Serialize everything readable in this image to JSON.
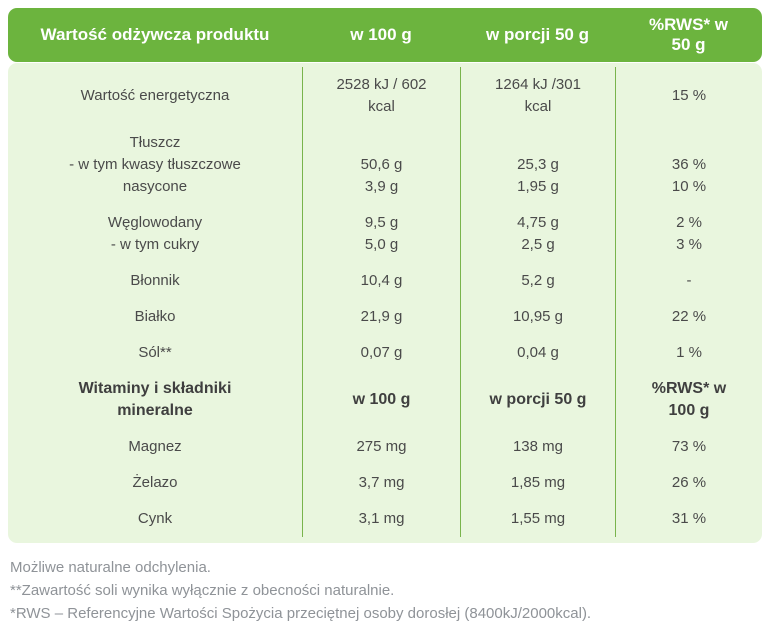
{
  "colors": {
    "header_green": "#6cb43e",
    "body_green": "#e9f6de",
    "divider_green": "#79b44c",
    "text_dark": "#4a4a4a",
    "footnote_gray": "#8f9398"
  },
  "table": {
    "header": {
      "columns": [
        {
          "lines": [
            "Wartość odżywcza produktu"
          ]
        },
        {
          "lines": [
            "w 100 g"
          ]
        },
        {
          "lines": [
            "w porcji 50 g"
          ]
        },
        {
          "lines": [
            "%RWS* w",
            "50 g"
          ]
        }
      ]
    },
    "rows": [
      {
        "name": "row-energy",
        "bold": false,
        "cells": [
          [
            "Wartość energetyczna"
          ],
          [
            "2528 kJ / 602",
            "kcal"
          ],
          [
            "1264 kJ /301",
            "kcal"
          ],
          [
            "15 %"
          ]
        ]
      },
      {
        "name": "row-fat",
        "bold": false,
        "cells": [
          [
            "Tłuszcz",
            "- w tym kwasy tłuszczowe",
            "nasycone"
          ],
          [
            "",
            "50,6 g",
            "3,9 g"
          ],
          [
            "",
            "25,3 g",
            "1,95 g"
          ],
          [
            "",
            "36 %",
            "10 %"
          ]
        ]
      },
      {
        "name": "row-carbohydrates",
        "bold": false,
        "cells": [
          [
            "Węglowodany",
            "- w tym cukry"
          ],
          [
            "9,5 g",
            "5,0 g"
          ],
          [
            "4,75 g",
            "2,5 g"
          ],
          [
            "2 %",
            "3 %"
          ]
        ]
      },
      {
        "name": "row-fiber",
        "bold": false,
        "cells": [
          [
            "Błonnik"
          ],
          [
            "10,4 g"
          ],
          [
            "5,2 g"
          ],
          [
            "-"
          ]
        ]
      },
      {
        "name": "row-protein",
        "bold": false,
        "cells": [
          [
            "Białko"
          ],
          [
            "21,9 g"
          ],
          [
            "10,95 g"
          ],
          [
            "22 %"
          ]
        ]
      },
      {
        "name": "row-salt",
        "bold": false,
        "cells": [
          [
            "Sól**"
          ],
          [
            "0,07 g"
          ],
          [
            "0,04 g"
          ],
          [
            "1 %"
          ]
        ]
      },
      {
        "name": "row-vitamins-subheader",
        "bold": true,
        "cells": [
          [
            "Witaminy i składniki",
            "mineralne"
          ],
          [
            "w 100 g"
          ],
          [
            "w porcji 50 g"
          ],
          [
            "%RWS* w",
            "100 g"
          ]
        ]
      },
      {
        "name": "row-magnesium",
        "bold": false,
        "cells": [
          [
            "Magnez"
          ],
          [
            "275 mg"
          ],
          [
            "138 mg"
          ],
          [
            "73 %"
          ]
        ]
      },
      {
        "name": "row-iron",
        "bold": false,
        "cells": [
          [
            "Żelazo"
          ],
          [
            "3,7 mg"
          ],
          [
            "1,85 mg"
          ],
          [
            "26 %"
          ]
        ]
      },
      {
        "name": "row-zinc",
        "bold": false,
        "cells": [
          [
            "Cynk"
          ],
          [
            "3,1 mg"
          ],
          [
            "1,55 mg"
          ],
          [
            "31 %"
          ]
        ]
      }
    ],
    "column_names": [
      "product-nutrition-label",
      "value-per-100g",
      "value-per-50g-portion",
      "value-rws-percent"
    ]
  },
  "footnotes": [
    "Możliwe naturalne odchylenia.",
    "**Zawartość soli wynika wyłącznie z obecności naturalnie.",
    "*RWS – Referencyjne Wartości Spożycia przeciętnej osoby dorosłej (8400kJ/2000kcal)."
  ]
}
